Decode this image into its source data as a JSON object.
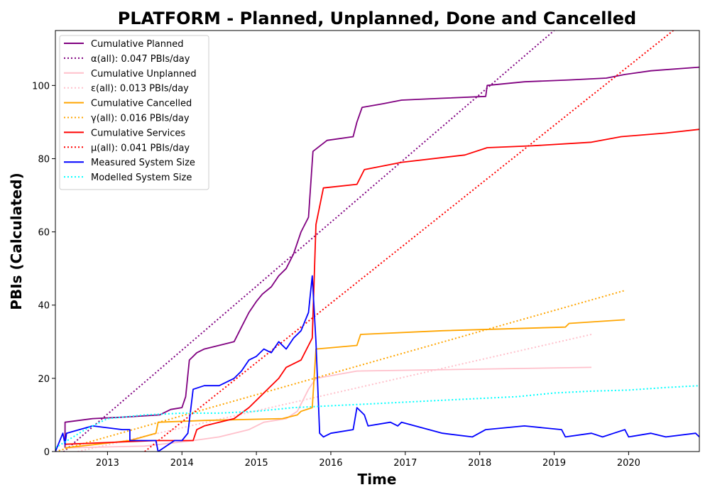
{
  "chart_data": {
    "type": "line",
    "title": "PLATFORM - Planned, Unplanned, Done  and Cancelled",
    "xlabel": "Time",
    "ylabel": "PBIs (Calculated)",
    "xlim": [
      2012.3,
      2020.95
    ],
    "ylim": [
      0,
      115
    ],
    "x_ticks": [
      2013,
      2014,
      2015,
      2016,
      2017,
      2018,
      2019,
      2020
    ],
    "x_tick_labels": [
      "2013",
      "2014",
      "2015",
      "2016",
      "2017",
      "2018",
      "2019",
      "2020"
    ],
    "y_ticks": [
      0,
      20,
      40,
      60,
      80,
      100
    ],
    "y_tick_labels": [
      "0",
      "20",
      "40",
      "60",
      "80",
      "100"
    ],
    "grid": false,
    "legend_position": "top-left",
    "series": [
      {
        "name": "Cumulative Planned",
        "style": "solid",
        "color": "#800080",
        "points": [
          [
            2012.43,
            1
          ],
          [
            2012.43,
            8
          ],
          [
            2012.8,
            9
          ],
          [
            2013.3,
            9.5
          ],
          [
            2013.7,
            10
          ],
          [
            2013.85,
            11.5
          ],
          [
            2014.0,
            12
          ],
          [
            2014.05,
            15
          ],
          [
            2014.1,
            25
          ],
          [
            2014.2,
            27
          ],
          [
            2014.3,
            28
          ],
          [
            2014.7,
            30
          ],
          [
            2014.8,
            34
          ],
          [
            2014.9,
            38
          ],
          [
            2015.0,
            41
          ],
          [
            2015.08,
            43
          ],
          [
            2015.2,
            45
          ],
          [
            2015.3,
            48
          ],
          [
            2015.4,
            50
          ],
          [
            2015.5,
            54
          ],
          [
            2015.6,
            60
          ],
          [
            2015.7,
            64
          ],
          [
            2015.76,
            82
          ],
          [
            2015.95,
            85
          ],
          [
            2016.3,
            86
          ],
          [
            2016.35,
            90
          ],
          [
            2016.42,
            94
          ],
          [
            2016.7,
            95
          ],
          [
            2016.95,
            96
          ],
          [
            2017.5,
            96.5
          ],
          [
            2018.08,
            97
          ],
          [
            2018.1,
            100
          ],
          [
            2018.6,
            101
          ],
          [
            2019.2,
            101.5
          ],
          [
            2019.7,
            102
          ],
          [
            2019.95,
            103
          ],
          [
            2020.3,
            104
          ],
          [
            2020.95,
            105
          ]
        ]
      },
      {
        "name": "α(all): 0.047 PBIs/day",
        "style": "dotted",
        "color": "#800080",
        "points": [
          [
            2012.3,
            -2
          ],
          [
            2019.0,
            115
          ]
        ]
      },
      {
        "name": "Cumulative Unplanned",
        "style": "solid",
        "color": "#ffc0cb",
        "points": [
          [
            2012.43,
            1
          ],
          [
            2013.5,
            1.5
          ],
          [
            2014.15,
            3
          ],
          [
            2014.5,
            4
          ],
          [
            2014.9,
            6
          ],
          [
            2015.1,
            8
          ],
          [
            2015.4,
            9
          ],
          [
            2015.55,
            11
          ],
          [
            2015.7,
            17
          ],
          [
            2015.8,
            20
          ],
          [
            2016.35,
            22
          ],
          [
            2019.5,
            23
          ]
        ]
      },
      {
        "name": "ε(all): 0.013 PBIs/day",
        "style": "dotted",
        "color": "#ffc0cb",
        "points": [
          [
            2012.6,
            0
          ],
          [
            2019.5,
            32
          ]
        ]
      },
      {
        "name": "Cumulative Cancelled",
        "style": "solid",
        "color": "#ffa500",
        "points": [
          [
            2012.43,
            1
          ],
          [
            2013.3,
            3
          ],
          [
            2013.65,
            5
          ],
          [
            2013.68,
            8
          ],
          [
            2014.3,
            8.5
          ],
          [
            2015.35,
            9
          ],
          [
            2015.55,
            10
          ],
          [
            2015.6,
            11
          ],
          [
            2015.75,
            12
          ],
          [
            2015.8,
            28
          ],
          [
            2016.35,
            29
          ],
          [
            2016.4,
            32
          ],
          [
            2017.5,
            33
          ],
          [
            2019.15,
            34
          ],
          [
            2019.2,
            35
          ],
          [
            2019.95,
            36
          ]
        ]
      },
      {
        "name": "γ(all): 0.016 PBIs/day",
        "style": "dotted",
        "color": "#ffa500",
        "points": [
          [
            2012.3,
            0
          ],
          [
            2019.95,
            44
          ]
        ]
      },
      {
        "name": "Cumulative Services",
        "style": "solid",
        "color": "#ff0000",
        "points": [
          [
            2012.43,
            2
          ],
          [
            2013.65,
            3
          ],
          [
            2014.15,
            3
          ],
          [
            2014.2,
            6
          ],
          [
            2014.3,
            7
          ],
          [
            2014.7,
            9
          ],
          [
            2014.9,
            12
          ],
          [
            2015.1,
            16
          ],
          [
            2015.3,
            20
          ],
          [
            2015.4,
            23
          ],
          [
            2015.6,
            25
          ],
          [
            2015.75,
            31
          ],
          [
            2015.8,
            62
          ],
          [
            2015.9,
            72
          ],
          [
            2016.35,
            73
          ],
          [
            2016.45,
            77
          ],
          [
            2016.95,
            79
          ],
          [
            2017.8,
            81
          ],
          [
            2018.1,
            83
          ],
          [
            2018.7,
            83.5
          ],
          [
            2019.5,
            84.5
          ],
          [
            2019.9,
            86
          ],
          [
            2020.5,
            87
          ],
          [
            2020.95,
            88
          ]
        ]
      },
      {
        "name": "μ(all): 0.041 PBIs/day",
        "style": "dotted",
        "color": "#ff0000",
        "points": [
          [
            2013.5,
            0
          ],
          [
            2020.6,
            115
          ]
        ]
      },
      {
        "name": "Measured System Size",
        "style": "solid",
        "color": "#0000ff",
        "points": [
          [
            2012.3,
            0
          ],
          [
            2012.4,
            5
          ],
          [
            2012.43,
            2
          ],
          [
            2012.45,
            5
          ],
          [
            2012.8,
            7
          ],
          [
            2013.2,
            6
          ],
          [
            2013.3,
            6
          ],
          [
            2013.3,
            3
          ],
          [
            2013.65,
            3
          ],
          [
            2013.68,
            0
          ],
          [
            2013.9,
            3
          ],
          [
            2014.0,
            3
          ],
          [
            2014.08,
            5
          ],
          [
            2014.15,
            17
          ],
          [
            2014.3,
            18
          ],
          [
            2014.5,
            18
          ],
          [
            2014.7,
            20
          ],
          [
            2014.8,
            22
          ],
          [
            2014.9,
            25
          ],
          [
            2015.0,
            26
          ],
          [
            2015.1,
            28
          ],
          [
            2015.2,
            27
          ],
          [
            2015.3,
            30
          ],
          [
            2015.4,
            28
          ],
          [
            2015.5,
            31
          ],
          [
            2015.6,
            33
          ],
          [
            2015.7,
            38
          ],
          [
            2015.75,
            48
          ],
          [
            2015.8,
            30
          ],
          [
            2015.85,
            5
          ],
          [
            2015.9,
            4
          ],
          [
            2016.0,
            5
          ],
          [
            2016.3,
            6
          ],
          [
            2016.35,
            12
          ],
          [
            2016.45,
            10
          ],
          [
            2016.5,
            7
          ],
          [
            2016.8,
            8
          ],
          [
            2016.9,
            7
          ],
          [
            2016.95,
            8
          ],
          [
            2017.5,
            5
          ],
          [
            2017.9,
            4
          ],
          [
            2018.08,
            6
          ],
          [
            2018.6,
            7
          ],
          [
            2019.1,
            6
          ],
          [
            2019.15,
            4
          ],
          [
            2019.5,
            5
          ],
          [
            2019.65,
            4
          ],
          [
            2019.8,
            5
          ],
          [
            2019.95,
            6
          ],
          [
            2020.0,
            4
          ],
          [
            2020.3,
            5
          ],
          [
            2020.5,
            4
          ],
          [
            2020.9,
            5
          ],
          [
            2020.95,
            4
          ]
        ]
      },
      {
        "name": "Modelled System Size",
        "style": "dotted",
        "color": "#00ffff",
        "points": [
          [
            2012.3,
            1
          ],
          [
            2012.7,
            6
          ],
          [
            2013.0,
            9
          ],
          [
            2013.5,
            10
          ],
          [
            2014.0,
            10.5
          ],
          [
            2014.5,
            10.5
          ],
          [
            2015.0,
            11
          ],
          [
            2015.5,
            12
          ],
          [
            2016.0,
            12.5
          ],
          [
            2016.5,
            13
          ],
          [
            2017.0,
            13.5
          ],
          [
            2017.5,
            14
          ],
          [
            2018.0,
            14.5
          ],
          [
            2018.5,
            15
          ],
          [
            2019.0,
            16
          ],
          [
            2019.5,
            16.5
          ],
          [
            2020.0,
            16.8
          ],
          [
            2020.5,
            17.5
          ],
          [
            2020.95,
            18
          ]
        ]
      }
    ]
  }
}
